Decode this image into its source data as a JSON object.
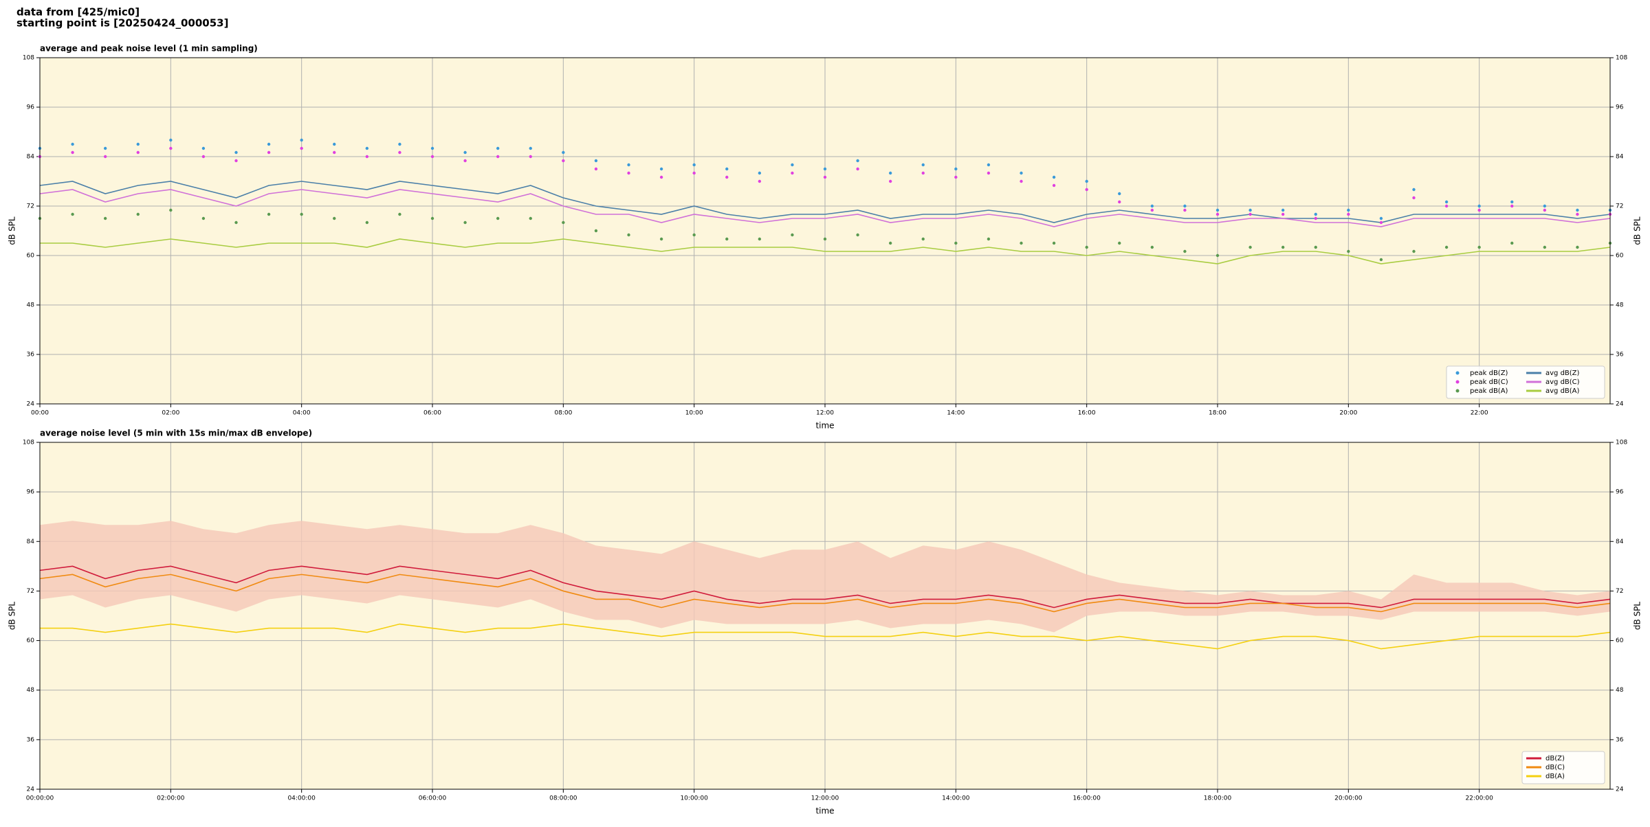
{
  "header": {
    "line1": "data from [425/mic0]",
    "line2": "starting point is [20250424_000053]"
  },
  "chart_data": [
    {
      "type": "line",
      "title": "average and peak noise level (1 min sampling)",
      "x_label": "time",
      "y_label": "dB SPL",
      "xlim": [
        0,
        24
      ],
      "ylim": [
        24,
        108
      ],
      "grid": true,
      "legend": "lower right",
      "background": "#fdf6dc",
      "xticks": [
        {
          "value": 0,
          "label": "00:00"
        },
        {
          "value": 2,
          "label": "02:00"
        },
        {
          "value": 4,
          "label": "04:00"
        },
        {
          "value": 6,
          "label": "06:00"
        },
        {
          "value": 8,
          "label": "08:00"
        },
        {
          "value": 10,
          "label": "10:00"
        },
        {
          "value": 12,
          "label": "12:00"
        },
        {
          "value": 14,
          "label": "14:00"
        },
        {
          "value": 16,
          "label": "16:00"
        },
        {
          "value": 18,
          "label": "18:00"
        },
        {
          "value": 20,
          "label": "20:00"
        },
        {
          "value": 22,
          "label": "22:00"
        }
      ],
      "yticks": [
        24,
        36,
        48,
        60,
        72,
        84,
        96,
        108
      ],
      "x": [
        0,
        0.5,
        1,
        1.5,
        2,
        2.5,
        3,
        3.5,
        4,
        4.5,
        5,
        5.5,
        6,
        6.5,
        7,
        7.5,
        8,
        8.5,
        9,
        9.5,
        10,
        10.5,
        11,
        11.5,
        12,
        12.5,
        13,
        13.5,
        14,
        14.5,
        15,
        15.5,
        16,
        16.5,
        17,
        17.5,
        18,
        18.5,
        19,
        19.5,
        20,
        20.5,
        21,
        21.5,
        22,
        22.5,
        23,
        23.5,
        24
      ],
      "series": [
        {
          "name": "peak dB(Z)",
          "color": "#3a9ad9",
          "marker": "dots",
          "values": [
            86,
            87,
            86,
            87,
            88,
            86,
            85,
            87,
            88,
            87,
            86,
            87,
            86,
            85,
            86,
            86,
            85,
            83,
            82,
            81,
            82,
            81,
            80,
            82,
            81,
            83,
            80,
            82,
            81,
            82,
            80,
            79,
            78,
            75,
            72,
            72,
            71,
            71,
            71,
            70,
            71,
            69,
            76,
            73,
            72,
            73,
            72,
            71,
            71
          ]
        },
        {
          "name": "peak dB(C)",
          "color": "#e040e0",
          "marker": "dots",
          "values": [
            84,
            85,
            84,
            85,
            86,
            84,
            83,
            85,
            86,
            85,
            84,
            85,
            84,
            83,
            84,
            84,
            83,
            81,
            80,
            79,
            80,
            79,
            78,
            80,
            79,
            81,
            78,
            80,
            79,
            80,
            78,
            77,
            76,
            73,
            71,
            71,
            70,
            70,
            70,
            69,
            70,
            68,
            74,
            72,
            71,
            72,
            71,
            70,
            70
          ]
        },
        {
          "name": "peak dB(A)",
          "color": "#5a9a50",
          "marker": "dots",
          "values": [
            69,
            70,
            69,
            70,
            71,
            69,
            68,
            70,
            70,
            69,
            68,
            70,
            69,
            68,
            69,
            69,
            68,
            66,
            65,
            64,
            65,
            64,
            64,
            65,
            64,
            65,
            63,
            64,
            63,
            64,
            63,
            63,
            62,
            63,
            62,
            61,
            60,
            62,
            62,
            62,
            61,
            59,
            61,
            62,
            62,
            63,
            62,
            62,
            63
          ]
        },
        {
          "name": "avg dB(Z)",
          "color": "#4a7fa8",
          "marker": "line",
          "values": [
            77,
            78,
            75,
            77,
            78,
            76,
            74,
            77,
            78,
            77,
            76,
            78,
            77,
            76,
            75,
            77,
            74,
            72,
            71,
            70,
            72,
            70,
            69,
            70,
            70,
            71,
            69,
            70,
            70,
            71,
            70,
            68,
            70,
            71,
            70,
            69,
            69,
            70,
            69,
            69,
            69,
            68,
            70,
            70,
            70,
            70,
            70,
            69,
            70
          ]
        },
        {
          "name": "avg dB(C)",
          "color": "#d070d8",
          "marker": "line",
          "values": [
            75,
            76,
            73,
            75,
            76,
            74,
            72,
            75,
            76,
            75,
            74,
            76,
            75,
            74,
            73,
            75,
            72,
            70,
            70,
            68,
            70,
            69,
            68,
            69,
            69,
            70,
            68,
            69,
            69,
            70,
            69,
            67,
            69,
            70,
            69,
            68,
            68,
            69,
            69,
            68,
            68,
            67,
            69,
            69,
            69,
            69,
            69,
            68,
            69
          ]
        },
        {
          "name": "avg dB(A)",
          "color": "#a8cc40",
          "marker": "line",
          "values": [
            63,
            63,
            62,
            63,
            64,
            63,
            62,
            63,
            63,
            63,
            62,
            64,
            63,
            62,
            63,
            63,
            64,
            63,
            62,
            61,
            62,
            62,
            62,
            62,
            61,
            61,
            61,
            62,
            61,
            62,
            61,
            61,
            60,
            61,
            60,
            59,
            58,
            60,
            61,
            61,
            60,
            58,
            59,
            60,
            61,
            61,
            61,
            61,
            62
          ]
        }
      ]
    },
    {
      "type": "line",
      "title": "average noise level (5 min with 15s min/max dB envelope)",
      "x_label": "time",
      "y_label": "dB SPL",
      "xlim": [
        0,
        24
      ],
      "ylim": [
        24,
        108
      ],
      "grid": true,
      "legend": "lower right",
      "background": "#fdf6dc",
      "xticks": [
        {
          "value": 0,
          "label": "00:00:00"
        },
        {
          "value": 2,
          "label": "02:00:00"
        },
        {
          "value": 4,
          "label": "04:00:00"
        },
        {
          "value": 6,
          "label": "06:00:00"
        },
        {
          "value": 8,
          "label": "08:00:00"
        },
        {
          "value": 10,
          "label": "10:00:00"
        },
        {
          "value": 12,
          "label": "12:00:00"
        },
        {
          "value": 14,
          "label": "14:00:00"
        },
        {
          "value": 16,
          "label": "16:00:00"
        },
        {
          "value": 18,
          "label": "18:00:00"
        },
        {
          "value": 20,
          "label": "20:00:00"
        },
        {
          "value": 22,
          "label": "22:00:00"
        }
      ],
      "yticks": [
        24,
        36,
        48,
        60,
        72,
        84,
        96,
        108
      ],
      "x": [
        0,
        0.5,
        1,
        1.5,
        2,
        2.5,
        3,
        3.5,
        4,
        4.5,
        5,
        5.5,
        6,
        6.5,
        7,
        7.5,
        8,
        8.5,
        9,
        9.5,
        10,
        10.5,
        11,
        11.5,
        12,
        12.5,
        13,
        13.5,
        14,
        14.5,
        15,
        15.5,
        16,
        16.5,
        17,
        17.5,
        18,
        18.5,
        19,
        19.5,
        20,
        20.5,
        21,
        21.5,
        22,
        22.5,
        23,
        23.5,
        24
      ],
      "envelope": {
        "color": "#f5c8b8",
        "upper": [
          88,
          89,
          88,
          88,
          89,
          87,
          86,
          88,
          89,
          88,
          87,
          88,
          87,
          86,
          86,
          88,
          86,
          83,
          82,
          81,
          84,
          82,
          80,
          82,
          82,
          84,
          80,
          83,
          82,
          84,
          82,
          79,
          76,
          74,
          73,
          72,
          71,
          72,
          71,
          71,
          72,
          70,
          76,
          74,
          74,
          74,
          72,
          71,
          72
        ],
        "lower": [
          70,
          71,
          68,
          70,
          71,
          69,
          67,
          70,
          71,
          70,
          69,
          71,
          70,
          69,
          68,
          70,
          67,
          65,
          65,
          63,
          65,
          64,
          64,
          64,
          64,
          65,
          63,
          64,
          64,
          65,
          64,
          62,
          66,
          67,
          67,
          66,
          66,
          67,
          67,
          66,
          66,
          65,
          67,
          67,
          67,
          67,
          67,
          66,
          67
        ]
      },
      "series": [
        {
          "name": "dB(Z)",
          "color": "#d01a3a",
          "marker": "line",
          "values": [
            77,
            78,
            75,
            77,
            78,
            76,
            74,
            77,
            78,
            77,
            76,
            78,
            77,
            76,
            75,
            77,
            74,
            72,
            71,
            70,
            72,
            70,
            69,
            70,
            70,
            71,
            69,
            70,
            70,
            71,
            70,
            68,
            70,
            71,
            70,
            69,
            69,
            70,
            69,
            69,
            69,
            68,
            70,
            70,
            70,
            70,
            70,
            69,
            70
          ]
        },
        {
          "name": "dB(C)",
          "color": "#f08a10",
          "marker": "line",
          "values": [
            75,
            76,
            73,
            75,
            76,
            74,
            72,
            75,
            76,
            75,
            74,
            76,
            75,
            74,
            73,
            75,
            72,
            70,
            70,
            68,
            70,
            69,
            68,
            69,
            69,
            70,
            68,
            69,
            69,
            70,
            69,
            67,
            69,
            70,
            69,
            68,
            68,
            69,
            69,
            68,
            68,
            67,
            69,
            69,
            69,
            69,
            69,
            68,
            69
          ]
        },
        {
          "name": "dB(A)",
          "color": "#f4d010",
          "marker": "line",
          "values": [
            63,
            63,
            62,
            63,
            64,
            63,
            62,
            63,
            63,
            63,
            62,
            64,
            63,
            62,
            63,
            63,
            64,
            63,
            62,
            61,
            62,
            62,
            62,
            62,
            61,
            61,
            61,
            62,
            61,
            62,
            61,
            61,
            60,
            61,
            60,
            59,
            58,
            60,
            61,
            61,
            60,
            58,
            59,
            60,
            61,
            61,
            61,
            61,
            62
          ]
        }
      ]
    }
  ]
}
